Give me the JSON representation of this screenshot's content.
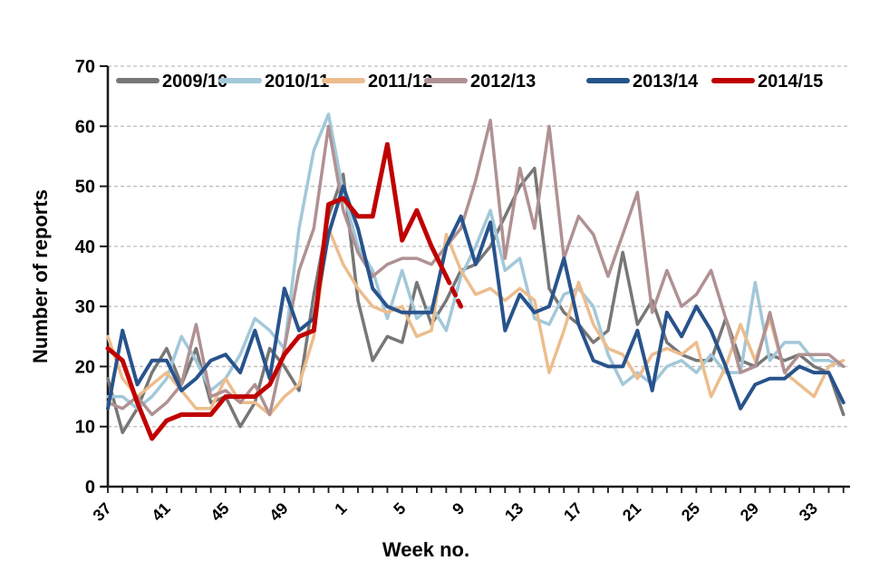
{
  "chart_data": {
    "type": "line",
    "title": "",
    "ylabel": "Number of reports",
    "xlabel": "Week no.",
    "ylim": [
      0,
      70
    ],
    "yticks": [
      0,
      10,
      20,
      30,
      40,
      50,
      60,
      70
    ],
    "grid": "horizontal-dashed",
    "gridline_color": "#bdbdbd",
    "axis_color": "#1a1a1a",
    "legend_position": "top",
    "x_weeks": [
      37,
      38,
      39,
      40,
      41,
      42,
      43,
      44,
      45,
      46,
      47,
      48,
      49,
      50,
      51,
      52,
      1,
      2,
      3,
      4,
      5,
      6,
      7,
      8,
      9,
      10,
      11,
      12,
      13,
      14,
      15,
      16,
      17,
      18,
      19,
      20,
      21,
      22,
      23,
      24,
      25,
      26,
      27,
      28,
      29,
      30,
      31,
      32,
      33,
      34,
      35
    ],
    "xtick_labels": [
      "37",
      "41",
      "45",
      "49",
      "1",
      "5",
      "9",
      "13",
      "17",
      "21",
      "25",
      "29",
      "33"
    ],
    "xtick_label_every": 4,
    "series": [
      {
        "name": "2009/10",
        "color": "#777777",
        "width": 3.5,
        "values": [
          18,
          9,
          13,
          19,
          23,
          17,
          23,
          14,
          15,
          10,
          14,
          23,
          20,
          16,
          32,
          45,
          52,
          31,
          21,
          25,
          24,
          34,
          27,
          31,
          36,
          37,
          40,
          45,
          50,
          53,
          33,
          29,
          27,
          24,
          26,
          39,
          27,
          31,
          24,
          22,
          21,
          21,
          28,
          21,
          20,
          22,
          21,
          22,
          20,
          19,
          12
        ]
      },
      {
        "name": "2010/11",
        "color": "#A2C8D9",
        "width": 3.5,
        "values": [
          15,
          15,
          13,
          15,
          18,
          25,
          21,
          16,
          18,
          22,
          28,
          26,
          23,
          43,
          56,
          62,
          49,
          40,
          36,
          28,
          36,
          28,
          30,
          26,
          35,
          40,
          46,
          36,
          38,
          28,
          27,
          32,
          33,
          30,
          22,
          17,
          19,
          17,
          20,
          21,
          19,
          22,
          19,
          19,
          34,
          21,
          24,
          24,
          21,
          21,
          20
        ]
      },
      {
        "name": "2011/12",
        "color": "#ECBD8D",
        "width": 3.5,
        "values": [
          25,
          18,
          15,
          17,
          19,
          16,
          13,
          13,
          18,
          14,
          14,
          12,
          15,
          17,
          25,
          43,
          37,
          33,
          30,
          29,
          30,
          25,
          26,
          42,
          36,
          32,
          33,
          31,
          33,
          31,
          19,
          26,
          34,
          27,
          23,
          22,
          18,
          22,
          23,
          22,
          24,
          15,
          20,
          27,
          21,
          28,
          19,
          17,
          15,
          20,
          21
        ]
      },
      {
        "name": "2012/13",
        "color": "#B09193",
        "width": 3.5,
        "values": [
          14,
          13,
          15,
          12,
          14,
          17,
          27,
          15,
          16,
          14,
          17,
          12,
          23,
          36,
          43,
          60,
          46,
          39,
          35,
          37,
          38,
          38,
          37,
          40,
          43,
          51,
          61,
          38,
          53,
          43,
          60,
          38,
          45,
          42,
          35,
          42,
          49,
          29,
          36,
          30,
          32,
          36,
          28,
          19,
          20,
          29,
          19,
          22,
          22,
          22,
          20
        ]
      },
      {
        "name": "2013/14",
        "color": "#28538C",
        "width": 4,
        "values": [
          13,
          26,
          17,
          21,
          21,
          16,
          18,
          21,
          22,
          19,
          26,
          18,
          33,
          26,
          28,
          42,
          50,
          43,
          33,
          30,
          29,
          29,
          29,
          40,
          45,
          37,
          44,
          26,
          32,
          29,
          30,
          38,
          27,
          21,
          20,
          20,
          26,
          16,
          29,
          25,
          30,
          26,
          20,
          13,
          17,
          18,
          18,
          20,
          19,
          19,
          14
        ]
      },
      {
        "name": "2014/15",
        "color": "#C00000",
        "width": 5,
        "dashed_tail_segments": 1,
        "partial_season": true,
        "values": [
          23,
          21,
          14,
          8,
          11,
          12,
          12,
          12,
          15,
          15,
          15,
          17,
          22,
          25,
          26,
          47,
          48,
          45,
          45,
          57,
          41,
          46,
          40,
          35,
          30
        ]
      }
    ]
  }
}
